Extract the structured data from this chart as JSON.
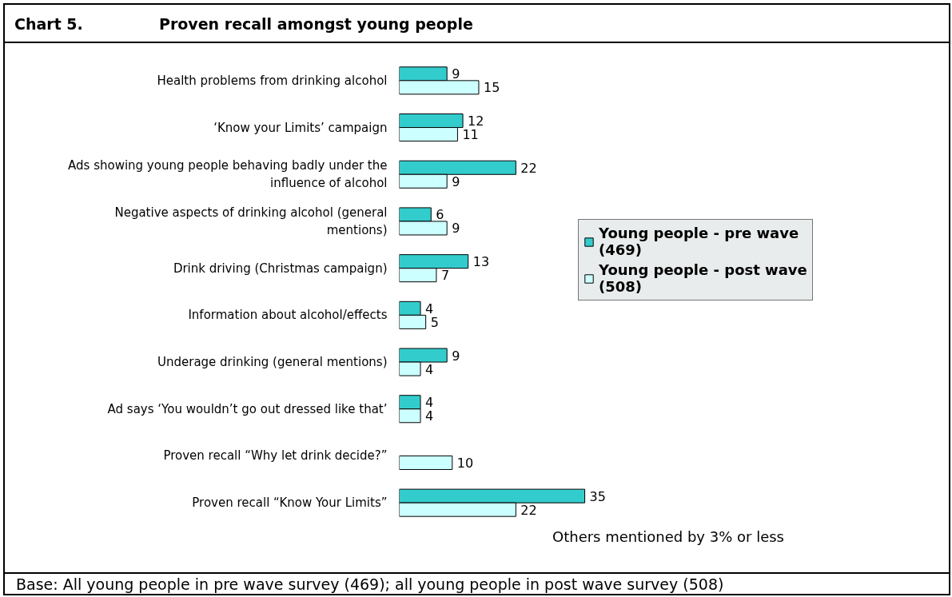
{
  "chart_data": {
    "type": "bar",
    "orientation": "horizontal",
    "title": "Chart 5.\tProven recall amongst young people",
    "categories": [
      "Health problems from drinking alcohol",
      "‘Know your Limits’ campaign",
      "Ads showing young people behaving badly under the influence of alcohol",
      "Negative aspects of drinking alcohol (general mentions)",
      "Drink driving (Christmas campaign)",
      "Information about alcohol/effects",
      "Underage drinking (general mentions)",
      "Ad says ‘You wouldn’t go out dressed like that’",
      "Proven recall “Why let drink decide?”",
      "Proven recall “Know Your Limits”"
    ],
    "series": [
      {
        "name": "Young people - pre wave (469)",
        "color": "#33cccc",
        "values": [
          9,
          12,
          22,
          6,
          13,
          4,
          9,
          4,
          null,
          35
        ]
      },
      {
        "name": "Young people - post wave (508)",
        "color": "#ccffff",
        "values": [
          15,
          11,
          9,
          9,
          7,
          5,
          4,
          4,
          10,
          22
        ]
      }
    ],
    "data_labels": true,
    "legend": "right",
    "tick_labels": "y",
    "annotations": [
      "Others mentioned by 3% or less",
      "Base: All young people in pre wave survey (469); all young people in post wave survey (508)"
    ]
  }
}
